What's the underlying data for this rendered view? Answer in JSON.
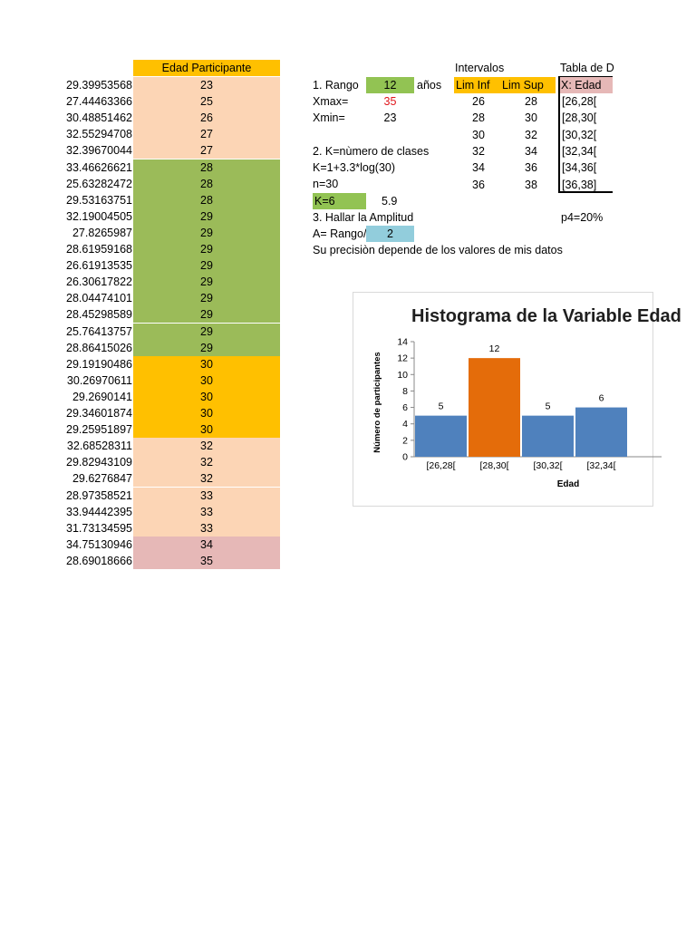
{
  "sheet": {
    "header": "Edad Participante",
    "raw_values": [
      "29.39953568",
      "27.44463366",
      "30.48851462",
      "32.55294708",
      "32.39670044",
      "33.46626621",
      "25.63282472",
      "29.53163751",
      "32.19004505",
      "27.8265987",
      "28.61959168",
      "26.61913535",
      "26.30617822",
      "28.04474101",
      "28.45298589",
      "25.76413757",
      "28.86415026",
      "29.19190486",
      "30.26970611",
      "29.2690141",
      "29.34601874",
      "29.25951897",
      "32.68528311",
      "29.82943109",
      "29.6276847",
      "28.97358521",
      "33.94442395",
      "31.73134595",
      "34.75130946",
      "28.69018666"
    ],
    "ages": [
      "23",
      "25",
      "26",
      "27",
      "27",
      "28",
      "28",
      "28",
      "29",
      "29",
      "29",
      "29",
      "29",
      "29",
      "29",
      "29",
      "29",
      "30",
      "30",
      "30",
      "30",
      "30",
      "32",
      "32",
      "32",
      "33",
      "33",
      "33",
      "34",
      "35"
    ],
    "colors": {
      "peach": "#fcd5b5",
      "green": "#9bbb59",
      "orange": "#ffc000",
      "pink": "#e6b8b7",
      "blue_bar": "#4f81bd",
      "orange_bar": "#e46c0a"
    }
  },
  "calc": {
    "rango_label": "1. Rango",
    "rango_value": "12",
    "rango_unit": "años",
    "xmax_label": "Xmax=",
    "xmax_value": "35",
    "xmin_label": "Xmin=",
    "xmin_value": "23",
    "k_title": "2. K=nùmero de clases",
    "k_formula": "K=1+3.3*log(30)",
    "n_label": "n=30",
    "k_value": "K=6",
    "k_result": "5.9",
    "amp_title": "3. Hallar la Amplitud",
    "amp_label": "A= Rango/",
    "amp_value": "2",
    "note": "Su precisiòn depende de los valores de mis datos"
  },
  "intervals": {
    "title": "Intervalos",
    "col_inf": "Lim Inf",
    "col_sup": "Lim Sup",
    "rows": [
      [
        "26",
        "28"
      ],
      [
        "28",
        "30"
      ],
      [
        "30",
        "32"
      ],
      [
        "32",
        "34"
      ],
      [
        "34",
        "36"
      ],
      [
        "36",
        "38"
      ]
    ]
  },
  "freq_table": {
    "title": "Tabla de D",
    "col_header": "X: Edad",
    "rows": [
      "[26,28[",
      "[28,30[",
      "[30,32[",
      "[32,34[",
      "[34,36[",
      "[36,38]"
    ],
    "p4": "p4=20%"
  },
  "chart_data": {
    "type": "bar",
    "title": "Histograma de la Variable Edad",
    "xlabel": "Edad",
    "ylabel": "Número de participantes",
    "categories": [
      "[26,28[",
      "[28,30[",
      "[30,32[",
      "[32,34["
    ],
    "values": [
      5,
      12,
      5,
      6
    ],
    "highlight_index": 1,
    "ylim": [
      0,
      14
    ],
    "yticks": [
      "0",
      "2",
      "4",
      "6",
      "8",
      "10",
      "12",
      "14"
    ]
  }
}
